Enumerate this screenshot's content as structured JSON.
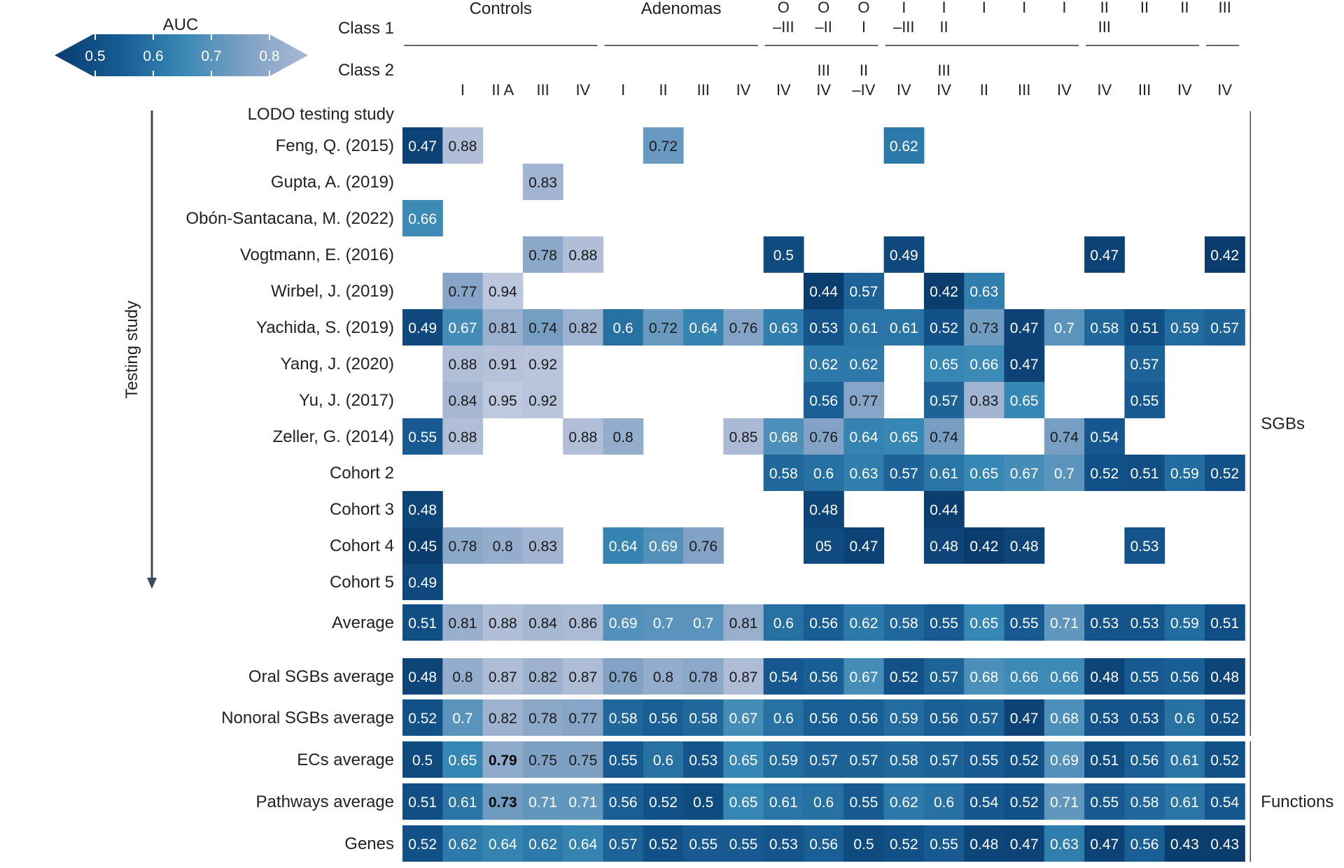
{
  "chart_data": {
    "type": "heatmap",
    "colorbar": {
      "title": "AUC",
      "ticks": [
        "0.5",
        "0.6",
        "0.7",
        "0.8"
      ],
      "range": [
        0.45,
        0.85
      ]
    },
    "row_axis_label": "Testing study",
    "class1_label": "Class 1",
    "class2_label": "Class 2",
    "col_groups": [
      {
        "label": "Controls",
        "start": 0,
        "end": 4
      },
      {
        "label": "Adenomas",
        "start": 5,
        "end": 8
      },
      {
        "label": "",
        "start": 9,
        "end": 11
      },
      {
        "label": "",
        "start": 12,
        "end": 16
      },
      {
        "label": "",
        "start": 17,
        "end": 19
      },
      {
        "label": "",
        "start": 20,
        "end": 20
      }
    ],
    "columns": [
      {
        "c1": [],
        "c2": []
      },
      {
        "c1": [],
        "c2": [
          "I"
        ]
      },
      {
        "c1": [],
        "c2": [
          "II A"
        ]
      },
      {
        "c1": [],
        "c2": [
          "III"
        ]
      },
      {
        "c1": [],
        "c2": [
          "IV"
        ]
      },
      {
        "c1": [],
        "c2": [
          "I"
        ]
      },
      {
        "c1": [],
        "c2": [
          "II"
        ]
      },
      {
        "c1": [],
        "c2": [
          "III"
        ]
      },
      {
        "c1": [],
        "c2": [
          "IV"
        ]
      },
      {
        "c1": [
          "O",
          "–III"
        ],
        "c2": [
          "IV"
        ]
      },
      {
        "c1": [
          "O",
          "–II"
        ],
        "c2": [
          "III",
          "IV"
        ]
      },
      {
        "c1": [
          "O",
          "I"
        ],
        "c2": [
          "II",
          "–IV"
        ]
      },
      {
        "c1": [
          "I",
          "–III"
        ],
        "c2": [
          "IV"
        ]
      },
      {
        "c1": [
          "I",
          "II"
        ],
        "c2": [
          "III",
          "IV"
        ]
      },
      {
        "c1": [
          "I"
        ],
        "c2": [
          "II"
        ]
      },
      {
        "c1": [
          "I"
        ],
        "c2": [
          "III"
        ]
      },
      {
        "c1": [
          "I"
        ],
        "c2": [
          "IV"
        ]
      },
      {
        "c1": [
          "II",
          "III"
        ],
        "c2": [
          "IV"
        ]
      },
      {
        "c1": [
          "II"
        ],
        "c2": [
          "III"
        ]
      },
      {
        "c1": [
          "II"
        ],
        "c2": [
          "IV"
        ]
      },
      {
        "c1": [
          "III"
        ],
        "c2": [
          "IV"
        ]
      }
    ],
    "heading_row": "LODO testing study",
    "rows": [
      {
        "label": "Feng, Q. (2015)",
        "values": [
          "0.47",
          "0.88",
          null,
          null,
          null,
          null,
          "0.72",
          null,
          null,
          null,
          null,
          null,
          "0.62",
          null,
          null,
          null,
          null,
          null,
          null,
          null,
          null
        ]
      },
      {
        "label": "Gupta, A. (2019)",
        "values": [
          null,
          null,
          null,
          "0.83",
          null,
          null,
          null,
          null,
          null,
          null,
          null,
          null,
          null,
          null,
          null,
          null,
          null,
          null,
          null,
          null,
          null
        ]
      },
      {
        "label": "Obón-Santacana, M. (2022)",
        "values": [
          "0.66",
          null,
          null,
          null,
          null,
          null,
          null,
          null,
          null,
          null,
          null,
          null,
          null,
          null,
          null,
          null,
          null,
          null,
          null,
          null,
          null
        ]
      },
      {
        "label": "Vogtmann, E. (2016)",
        "values": [
          null,
          null,
          null,
          "0.78",
          "0.88",
          null,
          null,
          null,
          null,
          "0.5",
          null,
          null,
          "0.49",
          null,
          null,
          null,
          null,
          "0.47",
          null,
          null,
          "0.42"
        ]
      },
      {
        "label": "Wirbel, J. (2019)",
        "values": [
          null,
          "0.77",
          "0.94",
          null,
          null,
          null,
          null,
          null,
          null,
          null,
          "0.44",
          "0.57",
          null,
          "0.42",
          "0.63",
          null,
          null,
          null,
          null,
          null,
          null
        ]
      },
      {
        "label": "Yachida, S. (2019)",
        "values": [
          "0.49",
          "0.67",
          "0.81",
          "0.74",
          "0.82",
          "0.6",
          "0.72",
          "0.64",
          "0.76",
          "0.63",
          "0.53",
          "0.61",
          "0.61",
          "0.52",
          "0.73",
          "0.47",
          "0.7",
          "0.58",
          "0.51",
          "0.59",
          "0.57"
        ]
      },
      {
        "label": "Yang, J. (2020)",
        "values": [
          null,
          "0.88",
          "0.91",
          "0.92",
          null,
          null,
          null,
          null,
          null,
          null,
          "0.62",
          "0.62",
          null,
          "0.65",
          "0.66",
          "0.47",
          null,
          null,
          "0.57",
          null,
          null
        ]
      },
      {
        "label": "Yu, J. (2017)",
        "values": [
          null,
          "0.84",
          "0.95",
          "0.92",
          null,
          null,
          null,
          null,
          null,
          null,
          "0.56",
          "0.77",
          null,
          "0.57",
          "0.83",
          "0.65",
          null,
          null,
          "0.55",
          null,
          null
        ]
      },
      {
        "label": "Zeller, G. (2014)",
        "values": [
          "0.55",
          "0.88",
          null,
          null,
          "0.88",
          "0.8",
          null,
          null,
          "0.85",
          "0.68",
          "0.76",
          "0.64",
          "0.65",
          "0.74",
          null,
          null,
          "0.74",
          "0.54",
          null,
          null,
          null
        ]
      },
      {
        "label": "Cohort 2",
        "values": [
          null,
          null,
          null,
          null,
          null,
          null,
          null,
          null,
          null,
          "0.58",
          "0.6",
          "0.63",
          "0.57",
          "0.61",
          "0.65",
          "0.67",
          "0.7",
          "0.52",
          "0.51",
          "0.59",
          "0.52"
        ]
      },
      {
        "label": "Cohort 3",
        "values": [
          "0.48",
          null,
          null,
          null,
          null,
          null,
          null,
          null,
          null,
          null,
          "0.48",
          null,
          null,
          "0.44",
          null,
          null,
          null,
          null,
          null,
          null,
          null
        ]
      },
      {
        "label": "Cohort 4",
        "values": [
          "0.45",
          "0.78",
          "0.8",
          "0.83",
          null,
          "0.64",
          "0.69",
          "0.76",
          null,
          null,
          "05",
          "0.47",
          null,
          "0.48",
          "0.42",
          "0.48",
          null,
          null,
          "0.53",
          null,
          null
        ]
      },
      {
        "label": "Cohort 5",
        "values": [
          "0.49",
          null,
          null,
          null,
          null,
          null,
          null,
          null,
          null,
          null,
          null,
          null,
          null,
          null,
          null,
          null,
          null,
          null,
          null,
          null,
          null
        ]
      },
      {
        "label": "Average",
        "values": [
          "0.51",
          "0.81",
          "0.88",
          "0.84",
          "0.86",
          "0.69",
          "0.7",
          "0.7",
          "0.81",
          "0.6",
          "0.56",
          "0.62",
          "0.58",
          "0.55",
          "0.65",
          "0.55",
          "0.71",
          "0.53",
          "0.53",
          "0.59",
          "0.51"
        ]
      },
      {
        "label": "Oral SGBs average",
        "values": [
          "0.48",
          "0.8",
          "0.87",
          "0.82",
          "0.87",
          "0.76",
          "0.8",
          "0.78",
          "0.87",
          "0.54",
          "0.56",
          "0.67",
          "0.52",
          "0.57",
          "0.68",
          "0.66",
          "0.66",
          "0.48",
          "0.55",
          "0.56",
          "0.48"
        ]
      },
      {
        "label": "Nonoral SGBs average",
        "values": [
          "0.52",
          "0.7",
          "0.82",
          "0.78",
          "0.77",
          "0.58",
          "0.56",
          "0.58",
          "0.67",
          "0.6",
          "0.56",
          "0.56",
          "0.59",
          "0.56",
          "0.57",
          "0.47",
          "0.68",
          "0.53",
          "0.53",
          "0.6",
          "0.52"
        ]
      },
      {
        "label": "ECs average",
        "values": [
          "0.5",
          "0.65",
          "0.79",
          "0.75",
          "0.75",
          "0.55",
          "0.6",
          "0.53",
          "0.65",
          "0.59",
          "0.57",
          "0.57",
          "0.58",
          "0.57",
          "0.55",
          "0.52",
          "0.69",
          "0.51",
          "0.56",
          "0.61",
          "0.52"
        ],
        "bold": [
          2
        ]
      },
      {
        "label": "Pathways average",
        "values": [
          "0.51",
          "0.61",
          "0.73",
          "0.71",
          "0.71",
          "0.56",
          "0.52",
          "0.5",
          "0.65",
          "0.61",
          "0.6",
          "0.55",
          "0.62",
          "0.6",
          "0.54",
          "0.52",
          "0.71",
          "0.55",
          "0.58",
          "0.61",
          "0.54"
        ],
        "bold": [
          2
        ]
      },
      {
        "label": "Genes",
        "values": [
          "0.52",
          "0.62",
          "0.64",
          "0.62",
          "0.64",
          "0.57",
          "0.52",
          "0.55",
          "0.55",
          "0.53",
          "0.56",
          "0.5",
          "0.52",
          "0.55",
          "0.48",
          "0.47",
          "0.63",
          "0.47",
          "0.56",
          "0.43",
          "0.43"
        ]
      }
    ],
    "bracket_labels": [
      {
        "label": "SGBs",
        "from_row": 0,
        "to_row": 15
      },
      {
        "label": "Functions",
        "from_row": 16,
        "to_row": 18
      }
    ]
  }
}
